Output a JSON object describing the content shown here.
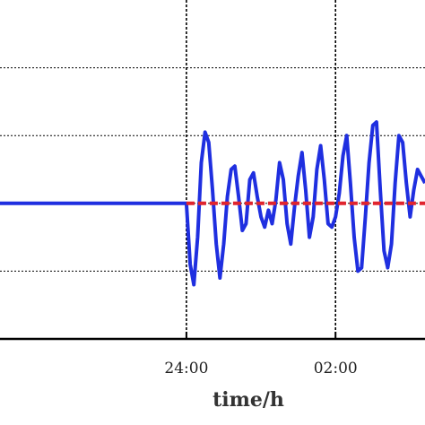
{
  "chart_data": {
    "type": "line",
    "title": "",
    "xlabel": "time/h",
    "ylabel": "",
    "x_ticks": [
      {
        "label": "24:00",
        "hour": 24
      },
      {
        "label": "02:00",
        "hour": 26
      }
    ],
    "xlim": [
      21.5,
      27.2
    ],
    "ylim": [
      -2.0,
      3.0
    ],
    "y_gridlines": [
      -1,
      0,
      1,
      2
    ],
    "grid": true,
    "series": [
      {
        "color": "#1f2fe0",
        "style": "solid",
        "x": [
          21.5,
          22.0,
          22.5,
          23.0,
          23.5,
          24.0,
          24.05,
          24.1,
          24.15,
          24.2,
          24.25,
          24.3,
          24.35,
          24.4,
          24.45,
          24.5,
          24.55,
          24.6,
          24.65,
          24.7,
          24.75,
          24.8,
          24.85,
          24.9,
          24.95,
          25.0,
          25.05,
          25.1,
          25.15,
          25.2,
          25.25,
          25.3,
          25.35,
          25.4,
          25.45,
          25.5,
          25.55,
          25.6,
          25.65,
          25.7,
          25.75,
          25.8,
          25.85,
          25.9,
          25.95,
          26.0,
          26.05,
          26.1,
          26.15,
          26.2,
          26.25,
          26.3,
          26.35,
          26.4,
          26.45,
          26.5,
          26.55,
          26.6,
          26.65,
          26.7,
          26.75,
          26.8,
          26.85,
          26.9,
          26.95,
          27.0,
          27.05,
          27.1,
          27.15,
          27.2
        ],
        "y": [
          0,
          0,
          0,
          0,
          0,
          0,
          -0.9,
          -1.2,
          -0.5,
          0.6,
          1.05,
          0.9,
          0.2,
          -0.6,
          -1.1,
          -0.6,
          0.1,
          0.5,
          0.55,
          0.1,
          -0.4,
          -0.3,
          0.35,
          0.45,
          0.1,
          -0.2,
          -0.35,
          -0.1,
          -0.3,
          0.05,
          0.6,
          0.35,
          -0.3,
          -0.6,
          -0.05,
          0.4,
          0.75,
          0.2,
          -0.5,
          -0.2,
          0.5,
          0.85,
          0.35,
          -0.3,
          -0.35,
          -0.2,
          0.15,
          0.7,
          1.0,
          0.3,
          -0.5,
          -1.0,
          -0.95,
          -0.2,
          0.6,
          1.15,
          1.2,
          0.2,
          -0.7,
          -0.95,
          -0.6,
          0.3,
          1.0,
          0.9,
          0.3,
          -0.2,
          0.2,
          0.5,
          0.4,
          0.3
        ]
      },
      {
        "color": "#e0242e",
        "style": "dashed",
        "x": [
          24.0,
          27.2
        ],
        "y": [
          0,
          0
        ]
      }
    ]
  }
}
